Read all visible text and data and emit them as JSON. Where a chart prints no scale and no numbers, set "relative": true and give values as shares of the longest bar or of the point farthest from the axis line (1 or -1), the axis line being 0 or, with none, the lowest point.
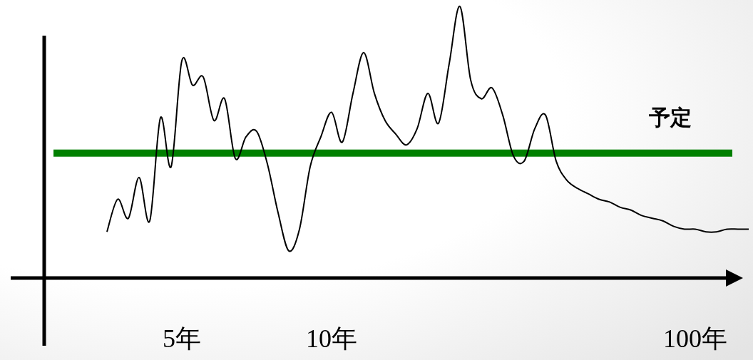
{
  "chart_data": {
    "type": "line",
    "relative": true,
    "categories": [
      null,
      null,
      null,
      null,
      null,
      null,
      null,
      "5年",
      null,
      null,
      null,
      null,
      null,
      null,
      null,
      null,
      null,
      null,
      null,
      null,
      null,
      "10年",
      null,
      null,
      null,
      null,
      null,
      null,
      null,
      null,
      null,
      null,
      null,
      null,
      null,
      null,
      null,
      null,
      null,
      null,
      null,
      null,
      null,
      null,
      null,
      null,
      null,
      null,
      null,
      null,
      null,
      null,
      null,
      null,
      null,
      "100年",
      null,
      null,
      null,
      null,
      null
    ],
    "series": [
      {
        "color": "#000000",
        "values": [
          0.17,
          0.29,
          0.22,
          0.37,
          0.21,
          0.59,
          0.41,
          0.8,
          0.71,
          0.74,
          0.58,
          0.66,
          0.44,
          0.52,
          0.54,
          0.42,
          0.24,
          0.1,
          0.18,
          0.41,
          0.52,
          0.61,
          0.5,
          0.68,
          0.83,
          0.68,
          0.58,
          0.53,
          0.49,
          0.55,
          0.68,
          0.57,
          0.79,
          1.0,
          0.73,
          0.66,
          0.7,
          0.6,
          0.45,
          0.43,
          0.55,
          0.6,
          0.43,
          0.36,
          0.33,
          0.31,
          0.29,
          0.28,
          0.26,
          0.25,
          0.23,
          0.22,
          0.21,
          0.19,
          0.18,
          0.18,
          0.17,
          0.17,
          0.18,
          0.18,
          0.18
        ]
      }
    ],
    "ref_lines": [
      {
        "axis": "y",
        "value": 0.46,
        "label": "予定",
        "color": "#008000"
      }
    ]
  }
}
